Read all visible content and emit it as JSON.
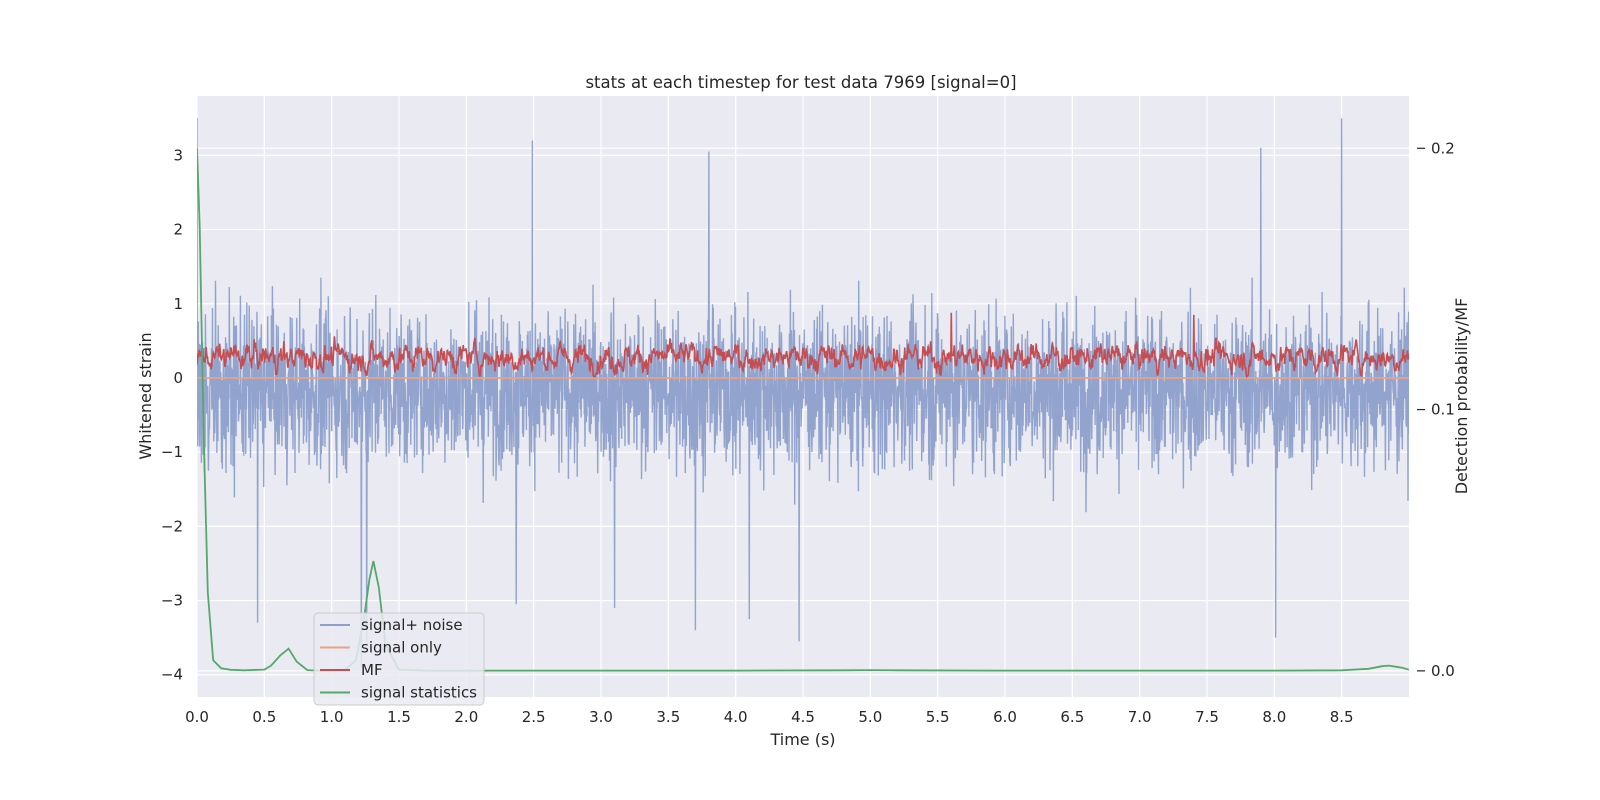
{
  "chart_data": {
    "type": "line",
    "title": "stats at each timestep for test data 7969 [signal=0]",
    "xlabel": "Time (s)",
    "ylabel_left": "Whitened strain",
    "ylabel_right": "Detection probability/MF",
    "xlim": [
      0.0,
      9.0
    ],
    "ylim_left": [
      -4.3,
      3.8
    ],
    "ylim_right": [
      -0.01,
      0.22
    ],
    "x_ticks": [
      0.0,
      0.5,
      1.0,
      1.5,
      2.0,
      2.5,
      3.0,
      3.5,
      4.0,
      4.5,
      5.0,
      5.5,
      6.0,
      6.5,
      7.0,
      7.5,
      8.0,
      8.5
    ],
    "x_tick_labels": [
      "0.0",
      "0.5",
      "1.0",
      "1.5",
      "2.0",
      "2.5",
      "3.0",
      "3.5",
      "4.0",
      "4.5",
      "5.0",
      "5.5",
      "6.0",
      "6.5",
      "7.0",
      "7.5",
      "8.0",
      "8.5"
    ],
    "y_ticks_left": [
      -4,
      -3,
      -2,
      -1,
      0,
      1,
      2,
      3
    ],
    "y_tick_labels_left": [
      "−4",
      "−3",
      "−2",
      "−1",
      "0",
      "1",
      "2",
      "3"
    ],
    "y_ticks_right": [
      0.0,
      0.1,
      0.2
    ],
    "y_tick_labels_right": [
      "0.0",
      "0.1",
      "0.2"
    ],
    "grid": true,
    "legend": {
      "position": "lower-left",
      "entries": [
        {
          "label": "signal+ noise",
          "color": "#8da0cb"
        },
        {
          "label": "signal only",
          "color": "#e8a385"
        },
        {
          "label": "MF",
          "color": "#c44e52"
        },
        {
          "label": "signal statistics",
          "color": "#55a868"
        }
      ]
    },
    "series": [
      {
        "name": "signal+ noise",
        "axis": "left",
        "kind": "dense-noise",
        "color": "#8da0cb",
        "x_range": [
          0.0,
          9.0
        ],
        "mean": -0.2,
        "envelope_typical": [
          -1.9,
          1.6
        ],
        "peaks": [
          {
            "x": 0.0,
            "y": 3.5
          },
          {
            "x": 2.49,
            "y": 3.2
          },
          {
            "x": 8.5,
            "y": 3.5
          },
          {
            "x": 7.9,
            "y": 3.1
          },
          {
            "x": 3.8,
            "y": 3.05
          },
          {
            "x": 0.45,
            "y": -3.3
          },
          {
            "x": 1.22,
            "y": -3.9
          },
          {
            "x": 1.26,
            "y": -3.6
          },
          {
            "x": 4.47,
            "y": -3.55
          },
          {
            "x": 8.01,
            "y": -3.5
          },
          {
            "x": 3.7,
            "y": -3.4
          },
          {
            "x": 2.37,
            "y": -3.05
          },
          {
            "x": 3.1,
            "y": -3.1
          },
          {
            "x": 4.1,
            "y": -3.25
          }
        ]
      },
      {
        "name": "signal only",
        "axis": "left",
        "kind": "flat",
        "color": "#e8a385",
        "x": [
          0.0,
          9.0
        ],
        "y": [
          0.0,
          0.0
        ]
      },
      {
        "name": "MF",
        "axis": "left",
        "kind": "dense-noise",
        "color": "#c44e52",
        "x_range": [
          0.0,
          9.0
        ],
        "mean": 0.28,
        "envelope_typical": [
          0.02,
          0.68
        ],
        "peaks": [
          {
            "x": 5.6,
            "y": 0.88
          },
          {
            "x": 7.4,
            "y": 0.85
          }
        ]
      },
      {
        "name": "signal statistics",
        "axis": "right",
        "kind": "line",
        "color": "#55a868",
        "x": [
          0.0,
          0.02,
          0.05,
          0.08,
          0.12,
          0.18,
          0.25,
          0.35,
          0.5,
          0.55,
          0.62,
          0.68,
          0.74,
          0.82,
          0.9,
          1.0,
          1.1,
          1.18,
          1.24,
          1.28,
          1.31,
          1.35,
          1.4,
          1.5,
          1.7,
          2.0,
          3.0,
          4.0,
          4.8,
          5.0,
          5.2,
          6.0,
          7.0,
          8.0,
          8.5,
          8.7,
          8.8,
          8.85,
          8.9,
          8.95,
          9.0
        ],
        "y": [
          0.2,
          0.17,
          0.09,
          0.03,
          0.004,
          0.001,
          0.0004,
          0.0002,
          0.0005,
          0.002,
          0.006,
          0.0085,
          0.0035,
          0.0003,
          0.0001,
          0.0002,
          0.0005,
          0.004,
          0.02,
          0.035,
          0.042,
          0.032,
          0.01,
          0.0005,
          0.0001,
          0.0001,
          0.0001,
          0.0001,
          0.0002,
          0.0003,
          0.0002,
          0.0001,
          0.0001,
          0.0001,
          0.0002,
          0.0008,
          0.0018,
          0.002,
          0.0016,
          0.0012,
          0.0004
        ]
      }
    ]
  }
}
